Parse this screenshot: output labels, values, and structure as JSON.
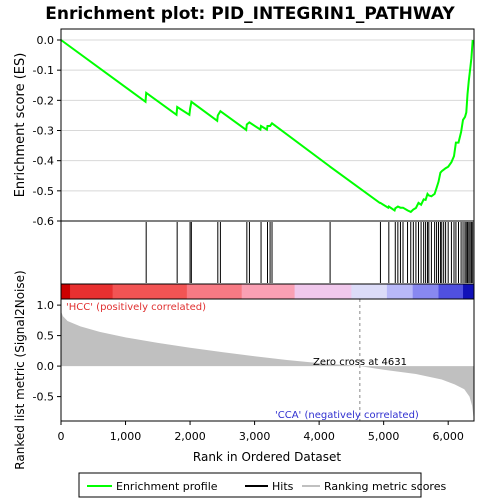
{
  "chart_data": {
    "type": "line",
    "title": "Enrichment plot: PID_INTEGRIN1_PATHWAY",
    "es_panel": {
      "ylabel": "Enrichment score (ES)",
      "ylim": [
        -0.6,
        0.0
      ],
      "yticks": [
        "0.0",
        "-0.1",
        "-0.2",
        "-0.3",
        "-0.4",
        "-0.5",
        "-0.6"
      ],
      "grid": true,
      "line_color": "#00ff00"
    },
    "metric_panel": {
      "ylabel": "Ranked list metric (Signal2Noise)",
      "ylim": [
        -0.9,
        1.1
      ],
      "yticks": [
        "1.0",
        "0.5",
        "0.0",
        "-0.5"
      ],
      "xlabel": "Rank in Ordered Dataset",
      "xticks": [
        "0",
        "1,000",
        "2,000",
        "3,000",
        "4,000",
        "5,000",
        "6,000"
      ],
      "pos_label": "'HCC' (positively correlated)",
      "neg_label": "'CCA' (negatively correlated)",
      "zero_cross_label": "Zero cross at 4631",
      "zero_cross": 4631
    },
    "x_max": 6400,
    "hits": [
      1320,
      1800,
      2000,
      2020,
      2430,
      2470,
      2880,
      2920,
      3100,
      3200,
      3240,
      3270,
      4170,
      4950,
      5080,
      5180,
      5220,
      5260,
      5300,
      5370,
      5420,
      5460,
      5500,
      5540,
      5580,
      5620,
      5650,
      5680,
      5700,
      5740,
      5790,
      5820,
      5850,
      5880,
      5900,
      5930,
      5960,
      6000,
      6050,
      6090,
      6120,
      6160,
      6200,
      6230,
      6260,
      6280,
      6300,
      6320,
      6340,
      6360,
      6380
    ],
    "es_curve": [
      [
        0,
        0.0
      ],
      [
        1310,
        -0.205
      ],
      [
        1320,
        -0.175
      ],
      [
        1790,
        -0.248
      ],
      [
        1800,
        -0.222
      ],
      [
        1990,
        -0.248
      ],
      [
        2000,
        -0.228
      ],
      [
        2020,
        -0.205
      ],
      [
        2420,
        -0.268
      ],
      [
        2430,
        -0.25
      ],
      [
        2470,
        -0.236
      ],
      [
        2870,
        -0.298
      ],
      [
        2880,
        -0.28
      ],
      [
        2920,
        -0.273
      ],
      [
        3090,
        -0.297
      ],
      [
        3100,
        -0.285
      ],
      [
        3190,
        -0.297
      ],
      [
        3200,
        -0.285
      ],
      [
        3240,
        -0.285
      ],
      [
        3270,
        -0.276
      ],
      [
        4160,
        -0.418
      ],
      [
        4170,
        -0.42
      ],
      [
        4940,
        -0.54
      ],
      [
        4950,
        -0.54
      ],
      [
        5070,
        -0.556
      ],
      [
        5080,
        -0.552
      ],
      [
        5170,
        -0.565
      ],
      [
        5180,
        -0.558
      ],
      [
        5220,
        -0.552
      ],
      [
        5260,
        -0.556
      ],
      [
        5300,
        -0.556
      ],
      [
        5370,
        -0.565
      ],
      [
        5420,
        -0.57
      ],
      [
        5460,
        -0.562
      ],
      [
        5500,
        -0.557
      ],
      [
        5540,
        -0.54
      ],
      [
        5580,
        -0.546
      ],
      [
        5620,
        -0.528
      ],
      [
        5650,
        -0.53
      ],
      [
        5680,
        -0.51
      ],
      [
        5700,
        -0.515
      ],
      [
        5740,
        -0.518
      ],
      [
        5790,
        -0.51
      ],
      [
        5820,
        -0.49
      ],
      [
        5850,
        -0.47
      ],
      [
        5880,
        -0.44
      ],
      [
        5900,
        -0.435
      ],
      [
        5930,
        -0.43
      ],
      [
        5960,
        -0.425
      ],
      [
        6000,
        -0.42
      ],
      [
        6050,
        -0.405
      ],
      [
        6090,
        -0.385
      ],
      [
        6120,
        -0.34
      ],
      [
        6160,
        -0.34
      ],
      [
        6200,
        -0.305
      ],
      [
        6230,
        -0.265
      ],
      [
        6260,
        -0.255
      ],
      [
        6280,
        -0.24
      ],
      [
        6300,
        -0.18
      ],
      [
        6320,
        -0.135
      ],
      [
        6340,
        -0.098
      ],
      [
        6360,
        -0.06
      ],
      [
        6380,
        0.0
      ]
    ],
    "metric_curve": [
      [
        0,
        0.9
      ],
      [
        30,
        0.82
      ],
      [
        100,
        0.74
      ],
      [
        300,
        0.65
      ],
      [
        600,
        0.56
      ],
      [
        1000,
        0.47
      ],
      [
        1500,
        0.38
      ],
      [
        2000,
        0.3
      ],
      [
        2500,
        0.23
      ],
      [
        3000,
        0.16
      ],
      [
        3500,
        0.1
      ],
      [
        4000,
        0.05
      ],
      [
        4631,
        0.0
      ],
      [
        5000,
        -0.06
      ],
      [
        5500,
        -0.13
      ],
      [
        5900,
        -0.22
      ],
      [
        6100,
        -0.3
      ],
      [
        6250,
        -0.38
      ],
      [
        6330,
        -0.5
      ],
      [
        6370,
        -0.65
      ],
      [
        6390,
        -0.82
      ],
      [
        6400,
        -0.88
      ]
    ],
    "heatmap_bar": {
      "segments": [
        {
          "from": 0,
          "to": 140,
          "color": "#cc0000"
        },
        {
          "from": 140,
          "to": 800,
          "color": "#e83030"
        },
        {
          "from": 800,
          "to": 1950,
          "color": "#f25454"
        },
        {
          "from": 1950,
          "to": 2800,
          "color": "#f77a84"
        },
        {
          "from": 2800,
          "to": 3620,
          "color": "#faa0b4"
        },
        {
          "from": 3620,
          "to": 4500,
          "color": "#f0c8ec"
        },
        {
          "from": 4500,
          "to": 5050,
          "color": "#dcdcf8"
        },
        {
          "from": 5050,
          "to": 5450,
          "color": "#b8b8f8"
        },
        {
          "from": 5450,
          "to": 5850,
          "color": "#8888f0"
        },
        {
          "from": 5850,
          "to": 6230,
          "color": "#5050e0"
        },
        {
          "from": 6230,
          "to": 6400,
          "color": "#1010b8"
        }
      ]
    },
    "legend": {
      "items": [
        {
          "label": "Enrichment profile",
          "color": "#00ff00"
        },
        {
          "label": "Hits",
          "color": "#000000"
        },
        {
          "label": "Ranking metric scores",
          "color": "#c0c0c0"
        }
      ]
    }
  }
}
